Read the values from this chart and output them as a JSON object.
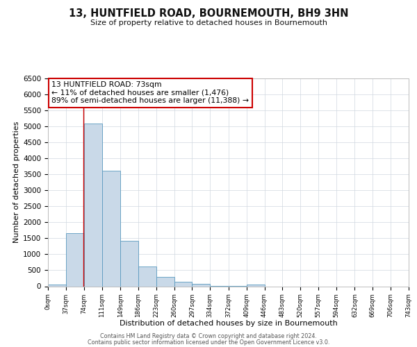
{
  "title": "13, HUNTFIELD ROAD, BOURNEMOUTH, BH9 3HN",
  "subtitle": "Size of property relative to detached houses in Bournemouth",
  "xlabel": "Distribution of detached houses by size in Bournemouth",
  "ylabel": "Number of detached properties",
  "bar_edges": [
    0,
    37,
    74,
    111,
    149,
    186,
    223,
    260,
    297,
    334,
    372,
    409,
    446,
    483,
    520,
    557,
    594,
    632,
    669,
    706,
    743
  ],
  "bar_heights": [
    50,
    1650,
    5080,
    3600,
    1430,
    610,
    300,
    145,
    70,
    20,
    5,
    50,
    0,
    0,
    0,
    0,
    0,
    0,
    0,
    0
  ],
  "bar_color": "#c9d9e8",
  "bar_edge_color": "#5a9abf",
  "property_line_x": 73,
  "property_line_color": "#cc0000",
  "annotation_box_color": "#cc0000",
  "annotation_title": "13 HUNTFIELD ROAD: 73sqm",
  "annotation_line1": "← 11% of detached houses are smaller (1,476)",
  "annotation_line2": "89% of semi-detached houses are larger (11,388) →",
  "ylim": [
    0,
    6500
  ],
  "yticks": [
    0,
    500,
    1000,
    1500,
    2000,
    2500,
    3000,
    3500,
    4000,
    4500,
    5000,
    5500,
    6000,
    6500
  ],
  "tick_labels": [
    "0sqm",
    "37sqm",
    "74sqm",
    "111sqm",
    "149sqm",
    "186sqm",
    "223sqm",
    "260sqm",
    "297sqm",
    "334sqm",
    "372sqm",
    "409sqm",
    "446sqm",
    "483sqm",
    "520sqm",
    "557sqm",
    "594sqm",
    "632sqm",
    "669sqm",
    "706sqm",
    "743sqm"
  ],
  "footer1": "Contains HM Land Registry data © Crown copyright and database right 2024.",
  "footer2": "Contains public sector information licensed under the Open Government Licence v3.0.",
  "background_color": "#ffffff",
  "grid_color": "#d0d8e0"
}
